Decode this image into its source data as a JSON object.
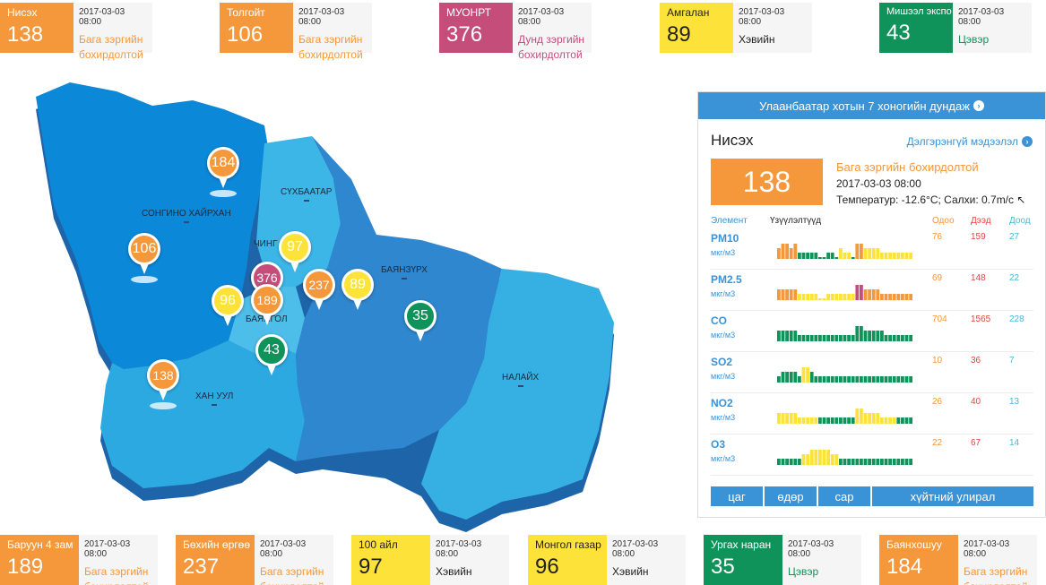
{
  "colors": {
    "orange": "#f5973b",
    "purple": "#c44d7a",
    "yellow": "#fde23a",
    "green": "#10935b",
    "blue": "#3a93d6"
  },
  "top_stations": [
    {
      "name": "Нисэх",
      "aqi": "138",
      "date": "2017-03-03 08:00",
      "status": "Бага зэргийн бохирдолтой",
      "color": "orange"
    },
    {
      "name": "Толгойт",
      "aqi": "106",
      "date": "2017-03-03 08:00",
      "status": "Бага зэргийн бохирдолтой",
      "color": "orange"
    },
    {
      "name": "МУОНРТ",
      "aqi": "376",
      "date": "2017-03-03 08:00",
      "status": "Дунд зэргийн бохирдолтой",
      "color": "purple"
    },
    {
      "name": "Амгалан",
      "aqi": "89",
      "date": "2017-03-03 08:00",
      "status": "Хэвийн",
      "color": "yellow"
    },
    {
      "name": "Мишээл экспо",
      "aqi": "43",
      "date": "2017-03-03 08:00",
      "status": "Цэвэр",
      "color": "green"
    }
  ],
  "bottom_stations": [
    {
      "name": "Баруун 4 зам",
      "aqi": "189",
      "date": "2017-03-03 08:00",
      "status": "Бага зэргийн бохирдолтой",
      "color": "orange"
    },
    {
      "name": "Бөхийн өргөө",
      "aqi": "237",
      "date": "2017-03-03 08:00",
      "status": "Бага зэргийн бохирдолтой",
      "color": "orange"
    },
    {
      "name": "100 айл",
      "aqi": "97",
      "date": "2017-03-03 08:00",
      "status": "Хэвийн",
      "color": "yellow"
    },
    {
      "name": "Монгол газар",
      "aqi": "96",
      "date": "2017-03-03 08:00",
      "status": "Хэвийн",
      "color": "yellow"
    },
    {
      "name": "Ургах наран",
      "aqi": "35",
      "date": "2017-03-03 08:00",
      "status": "Цэвэр",
      "color": "green"
    },
    {
      "name": "Баянхошуу",
      "aqi": "184",
      "date": "2017-03-03 08:00",
      "status": "Бага зэргийн бохирдолтой",
      "color": "orange"
    }
  ],
  "map": {
    "districts": [
      "СОНГИНО ХАЙРХАН",
      "СҮХБААТАР",
      "ЧИНГ",
      "БАЯНЗҮРХ",
      "БАЯНГОЛ",
      "ХАН УУЛ",
      "НАЛАЙХ"
    ],
    "markers": [
      {
        "aqi": "184",
        "color": "orange"
      },
      {
        "aqi": "106",
        "color": "orange"
      },
      {
        "aqi": "97",
        "color": "yellow"
      },
      {
        "aqi": "376",
        "color": "purple"
      },
      {
        "aqi": "189",
        "color": "orange"
      },
      {
        "aqi": "96",
        "color": "yellow"
      },
      {
        "aqi": "237",
        "color": "orange"
      },
      {
        "aqi": "89",
        "color": "yellow"
      },
      {
        "aqi": "35",
        "color": "green"
      },
      {
        "aqi": "43",
        "color": "green"
      },
      {
        "aqi": "138",
        "color": "orange"
      }
    ]
  },
  "panel": {
    "header": "Улаанбаатар хотын 7 хоногийн дундаж",
    "station": "Нисэх",
    "more": "Дэлгэрэнгүй мэдээлэл",
    "aqi": "138",
    "status": "Бага зэргийн бохирдолтой",
    "date": "2017-03-03 08:00",
    "weather": "Температур: -12.6°C; Салхи: 0.7m/с",
    "col_element": "Элемент",
    "col_indicators": "Үзүүлэлтүүд",
    "col_now": "Одоо",
    "col_high": "Дээд",
    "col_low": "Доод",
    "pollutants": [
      {
        "name": "PM10",
        "unit": "мкг/м3",
        "now": "76",
        "high": "159",
        "low": "27",
        "bars": [
          2,
          3,
          3,
          2,
          3,
          1,
          1,
          1,
          1,
          1,
          0,
          0,
          1,
          1,
          0,
          2,
          1,
          1,
          0,
          3,
          3,
          2,
          2,
          2,
          2,
          1,
          1,
          1,
          1,
          1,
          1,
          1,
          1
        ],
        "colors": [
          "o",
          "o",
          "o",
          "o",
          "o",
          "g",
          "g",
          "g",
          "g",
          "g",
          "g",
          "g",
          "g",
          "g",
          "g",
          "y",
          "y",
          "y",
          "g",
          "o",
          "o",
          "y",
          "y",
          "y",
          "y",
          "y",
          "y",
          "y",
          "y",
          "y",
          "y",
          "y",
          "y"
        ]
      },
      {
        "name": "PM2.5",
        "unit": "мкг/м3",
        "now": "69",
        "high": "148",
        "low": "22",
        "bars": [
          2,
          2,
          2,
          2,
          2,
          1,
          1,
          1,
          1,
          1,
          0,
          0,
          1,
          1,
          1,
          1,
          1,
          1,
          1,
          3,
          3,
          2,
          2,
          2,
          2,
          1,
          1,
          1,
          1,
          1,
          1,
          1,
          1
        ],
        "colors": [
          "o",
          "o",
          "o",
          "o",
          "o",
          "y",
          "y",
          "y",
          "y",
          "y",
          "y",
          "y",
          "y",
          "y",
          "y",
          "y",
          "y",
          "y",
          "y",
          "p",
          "p",
          "o",
          "o",
          "o",
          "o",
          "o",
          "o",
          "o",
          "o",
          "o",
          "o",
          "o",
          "o"
        ]
      },
      {
        "name": "CO",
        "unit": "мкг/м3",
        "now": "704",
        "high": "1565",
        "low": "228",
        "bars": [
          2,
          2,
          2,
          2,
          2,
          1,
          1,
          1,
          1,
          1,
          1,
          1,
          1,
          1,
          1,
          1,
          1,
          1,
          1,
          3,
          3,
          2,
          2,
          2,
          2,
          2,
          1,
          1,
          1,
          1,
          1,
          1,
          1
        ],
        "colors": [
          "g",
          "g",
          "g",
          "g",
          "g",
          "g",
          "g",
          "g",
          "g",
          "g",
          "g",
          "g",
          "g",
          "g",
          "g",
          "g",
          "g",
          "g",
          "g",
          "g",
          "g",
          "g",
          "g",
          "g",
          "g",
          "g",
          "g",
          "g",
          "g",
          "g",
          "g",
          "g",
          "g"
        ]
      },
      {
        "name": "SO2",
        "unit": "мкг/м3",
        "now": "10",
        "high": "36",
        "low": "7",
        "bars": [
          1,
          2,
          2,
          2,
          2,
          1,
          3,
          3,
          2,
          1,
          1,
          1,
          1,
          1,
          1,
          1,
          1,
          1,
          1,
          1,
          1,
          1,
          1,
          1,
          1,
          1,
          1,
          1,
          1,
          1,
          1,
          1,
          1
        ],
        "colors": [
          "g",
          "g",
          "g",
          "g",
          "g",
          "g",
          "y",
          "y",
          "g",
          "g",
          "g",
          "g",
          "g",
          "g",
          "g",
          "g",
          "g",
          "g",
          "g",
          "g",
          "g",
          "g",
          "g",
          "g",
          "g",
          "g",
          "g",
          "g",
          "g",
          "g",
          "g",
          "g",
          "g"
        ]
      },
      {
        "name": "NO2",
        "unit": "мкг/м3",
        "now": "26",
        "high": "40",
        "low": "13",
        "bars": [
          2,
          2,
          2,
          2,
          2,
          1,
          1,
          1,
          1,
          1,
          1,
          1,
          1,
          1,
          1,
          1,
          1,
          1,
          1,
          3,
          3,
          2,
          2,
          2,
          2,
          1,
          1,
          1,
          1,
          1,
          1,
          1,
          1
        ],
        "colors": [
          "y",
          "y",
          "y",
          "y",
          "y",
          "y",
          "y",
          "y",
          "y",
          "y",
          "g",
          "g",
          "g",
          "g",
          "g",
          "g",
          "g",
          "g",
          "g",
          "y",
          "y",
          "y",
          "y",
          "y",
          "y",
          "y",
          "y",
          "y",
          "y",
          "g",
          "g",
          "g",
          "g"
        ]
      },
      {
        "name": "O3",
        "unit": "мкг/м3",
        "now": "22",
        "high": "67",
        "low": "14",
        "bars": [
          1,
          1,
          1,
          1,
          1,
          1,
          2,
          2,
          3,
          3,
          3,
          3,
          3,
          2,
          2,
          1,
          1,
          1,
          1,
          1,
          1,
          1,
          1,
          1,
          1,
          1,
          1,
          1,
          1,
          1,
          1,
          1,
          1
        ],
        "colors": [
          "g",
          "g",
          "g",
          "g",
          "g",
          "g",
          "y",
          "y",
          "y",
          "y",
          "y",
          "y",
          "y",
          "y",
          "y",
          "g",
          "g",
          "g",
          "g",
          "g",
          "g",
          "g",
          "g",
          "g",
          "g",
          "g",
          "g",
          "g",
          "g",
          "g",
          "g",
          "g",
          "g"
        ]
      }
    ],
    "buttons": [
      "цаг",
      "өдөр",
      "сар",
      "хүйтний улирал"
    ]
  }
}
